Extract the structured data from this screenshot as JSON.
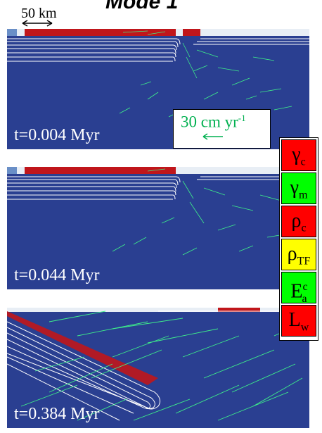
{
  "figure": {
    "title": "Mode 1",
    "scale_label": "50 km",
    "vector_scale": {
      "label": "30 cm yr",
      "exponent": "-1"
    },
    "colors": {
      "background": "#2a3f91",
      "slab": "#c0161b",
      "vectors": "#3ef08a",
      "contours": "#ffffff"
    }
  },
  "panels": [
    {
      "time": "t=0.004 Myr",
      "icon": "subduction-model-early"
    },
    {
      "time": "t=0.044 Myr",
      "icon": "subduction-model-mid"
    },
    {
      "time": "t=0.384 Myr",
      "icon": "subduction-model-late"
    }
  ],
  "legend": [
    {
      "symbol": "γ",
      "sub": "c",
      "sup": "",
      "color": "#ff0000"
    },
    {
      "symbol": "γ",
      "sub": "m",
      "sup": "",
      "color": "#00ff00"
    },
    {
      "symbol": "ρ",
      "sub": "c",
      "sup": "",
      "color": "#ff0000"
    },
    {
      "symbol": "ρ",
      "sub": "TF",
      "sup": "",
      "color": "#ffff00"
    },
    {
      "symbol": "E",
      "sub": "a",
      "sup": "c",
      "color": "#00ff00"
    },
    {
      "symbol": "L",
      "sub": "w",
      "sup": "",
      "color": "#ff0000"
    }
  ]
}
